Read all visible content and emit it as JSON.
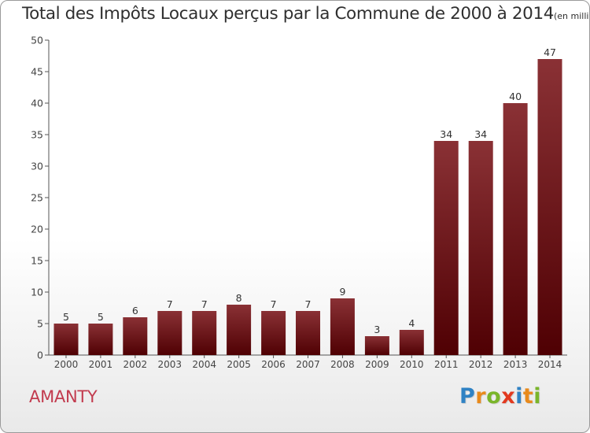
{
  "header": {
    "title": "Total des Impôts Locaux perçus par la Commune de 2000 à 2014",
    "unit": "(en milliers d'€)"
  },
  "footer": {
    "commune": "AMANTY",
    "logo": "Proxiti"
  },
  "colors": {
    "bar_dark": "#4f0003",
    "bar_light": "#8a3135",
    "axis": "#555555",
    "commune_text": "#c23b4e"
  },
  "chart_data": {
    "type": "bar",
    "title": "Total des Impôts Locaux perçus par la Commune de 2000 à 2014",
    "ylabel": "",
    "xlabel": "",
    "ylim": [
      0,
      50
    ],
    "yticks": [
      0,
      5,
      10,
      15,
      20,
      25,
      30,
      35,
      40,
      45,
      50
    ],
    "categories": [
      "2000",
      "2001",
      "2002",
      "2003",
      "2004",
      "2005",
      "2006",
      "2007",
      "2008",
      "2009",
      "2010",
      "2011",
      "2012",
      "2013",
      "2014"
    ],
    "values": [
      5,
      5,
      6,
      7,
      7,
      8,
      7,
      7,
      9,
      3,
      4,
      34,
      34,
      40,
      47
    ],
    "grid": false
  }
}
